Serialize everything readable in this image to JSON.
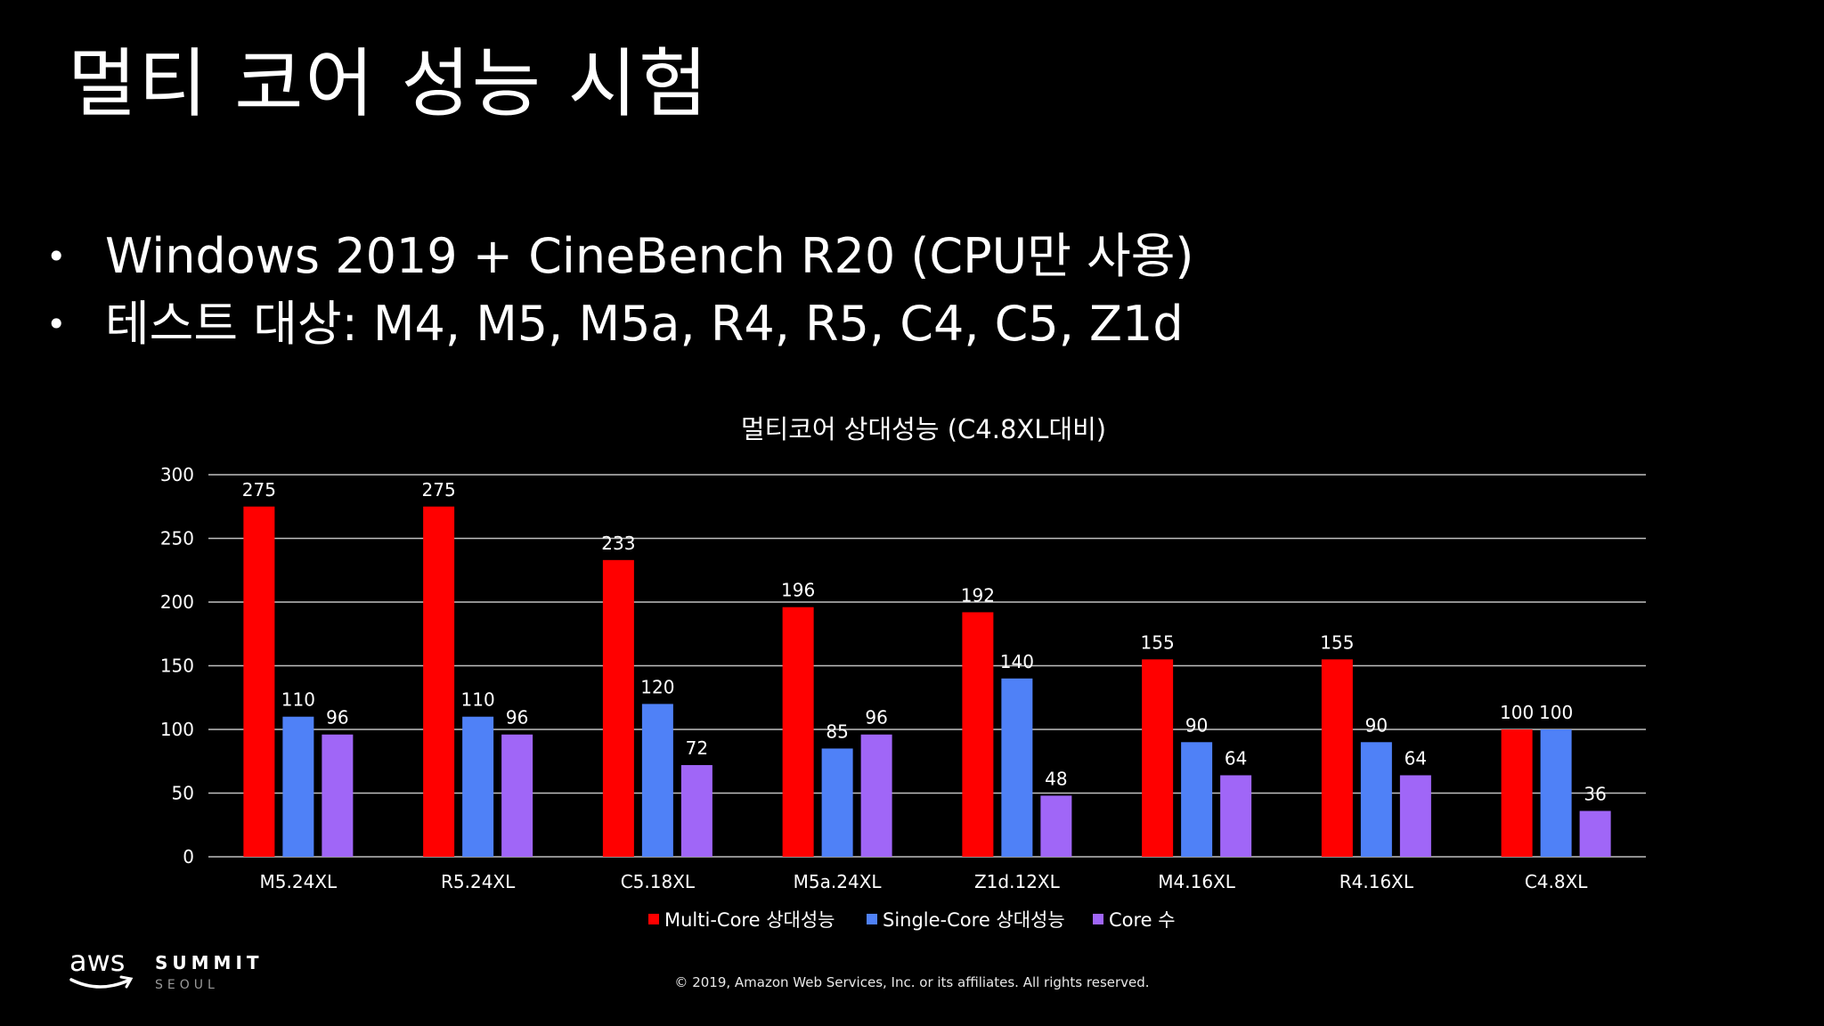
{
  "slide": {
    "title": "멀티 코어 성능 시험",
    "bullets": [
      "Windows 2019 + CineBench R20 (CPU만 사용)",
      "테스트 대상: M4, M5, M5a, R4, R5, C4, C5, Z1d"
    ]
  },
  "chart_data": {
    "type": "bar",
    "title": "멀티코어 상대성능 (C4.8XL대비)",
    "xlabel": "",
    "ylabel": "",
    "ylim": [
      0,
      300
    ],
    "yticks": [
      0,
      50,
      100,
      150,
      200,
      250,
      300
    ],
    "grid": true,
    "legend_position": "bottom",
    "data_labels": true,
    "categories": [
      "M5.24XL",
      "R5.24XL",
      "C5.18XL",
      "M5a.24XL",
      "Z1d.12XL",
      "M4.16XL",
      "R4.16XL",
      "C4.8XL"
    ],
    "series": [
      {
        "name": "Multi-Core 상대성능",
        "color": "#ff0000",
        "values": [
          275,
          275,
          233,
          196,
          192,
          155,
          155,
          100
        ]
      },
      {
        "name": "Single-Core 상대성능",
        "color": "#4f81f7",
        "values": [
          110,
          110,
          120,
          85,
          140,
          90,
          90,
          100
        ]
      },
      {
        "name": "Core 수",
        "color": "#a066f7",
        "values": [
          96,
          96,
          72,
          96,
          48,
          64,
          64,
          36
        ]
      }
    ]
  },
  "footer": {
    "logo_text": "aws",
    "logo_event": "SUMMIT",
    "logo_city": "SEOUL",
    "copyright": "© 2019, Amazon Web Services, Inc. or its affiliates. All rights reserved."
  }
}
